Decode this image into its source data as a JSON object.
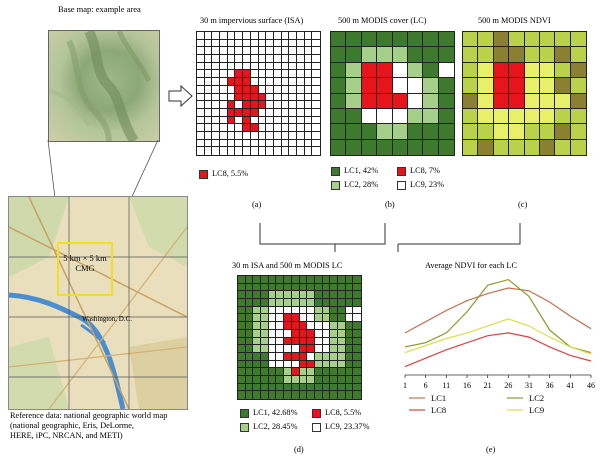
{
  "colors": {
    "LC1": "#3d7a2e",
    "LC2": "#a6d08a",
    "LC8": "#e8141c",
    "LC9": "#ffffff",
    "ndvi_dark": "#8b7f32",
    "ndvi_mid": "#b9d24a",
    "ndvi_light": "#e8f06a"
  },
  "base_map": {
    "title": "Base map: example area",
    "cmg_box_label": "5 km × 5 km\nCMG",
    "city_label": "Washington, D.C.",
    "caption": "Reference data: national geographic world map\n(national geographic, Eris, DeLorme,\nHERE, iPC, NRCAN, and METI)"
  },
  "panel_a": {
    "title": "30 m impervious surface (ISA)",
    "legend": [
      {
        "key": "LC8",
        "label": "LC8, 5.5%"
      }
    ],
    "letter": "(a)"
  },
  "panel_b": {
    "title": "500 m MODIS cover (LC)",
    "legend": [
      {
        "key": "LC1",
        "label": "LC1, 42%"
      },
      {
        "key": "LC8",
        "label": "LC8, 7%"
      },
      {
        "key": "LC2",
        "label": "LC2, 28%"
      },
      {
        "key": "LC9",
        "label": "LC9, 23%"
      }
    ],
    "letter": "(b)"
  },
  "panel_c": {
    "title": "500 m MODIS NDVI",
    "letter": "(c)"
  },
  "panel_d": {
    "title": "30 m ISA and 500 m MODIS LC",
    "legend": [
      {
        "key": "LC1",
        "label": "LC1, 42.68%"
      },
      {
        "key": "LC8",
        "label": "LC8, 5.5%"
      },
      {
        "key": "LC2",
        "label": "LC2, 28.45%"
      },
      {
        "key": "LC9",
        "label": "LC9, 23.37%"
      }
    ],
    "letter": "(d)"
  },
  "chart_data": {
    "type": "line",
    "title": "Average NDVI for each LC",
    "xlabel": "",
    "ylabel": "",
    "x_ticks": [
      "1",
      "6",
      "11",
      "16",
      "21",
      "26",
      "31",
      "36",
      "41",
      "46"
    ],
    "x": [
      1,
      6,
      11,
      16,
      21,
      26,
      31,
      36,
      41,
      46
    ],
    "series": [
      {
        "name": "LC1",
        "color": "#c07050",
        "values": [
          0.4,
          0.48,
          0.56,
          0.63,
          0.68,
          0.72,
          0.7,
          0.62,
          0.52,
          0.43
        ]
      },
      {
        "name": "LC2",
        "color": "#8a9a30",
        "values": [
          0.3,
          0.33,
          0.4,
          0.55,
          0.74,
          0.78,
          0.66,
          0.42,
          0.3,
          0.26
        ]
      },
      {
        "name": "LC8",
        "color": "#e04040",
        "values": [
          0.16,
          0.22,
          0.28,
          0.33,
          0.38,
          0.4,
          0.37,
          0.3,
          0.24,
          0.2
        ]
      },
      {
        "name": "LC9",
        "color": "#d8e050",
        "values": [
          0.26,
          0.31,
          0.36,
          0.4,
          0.45,
          0.5,
          0.45,
          0.37,
          0.3,
          0.25
        ]
      }
    ],
    "legend_placement": "bottom",
    "letter": "(e)"
  }
}
